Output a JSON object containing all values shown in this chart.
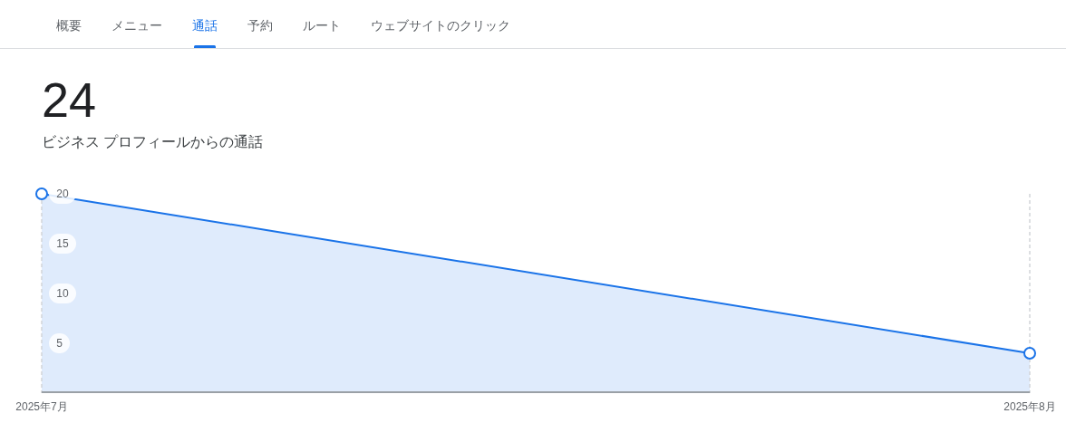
{
  "chart_data": {
    "type": "area",
    "title": "24",
    "subtitle": "ビジネス プロフィールからの通話",
    "annotations": [
      "概要",
      "メニュー",
      "通話",
      "予約",
      "ルート",
      "ウェブサイトのクリック"
    ],
    "x": [
      "2025-07",
      "2025-08"
    ],
    "series": [
      {
        "color": "#1a73e8",
        "values": [
          20,
          4
        ]
      }
    ],
    "xlim": [
      "2025-07",
      "2025-08"
    ],
    "xticks": [
      {
        "value": "2025-07",
        "label": "2025年7月"
      },
      {
        "value": "2025-08",
        "label": "2025年8月"
      }
    ],
    "ylim": [
      0,
      20
    ],
    "yticks": [
      5,
      10,
      15,
      20
    ],
    "grid": "x",
    "marker": "circle"
  }
}
